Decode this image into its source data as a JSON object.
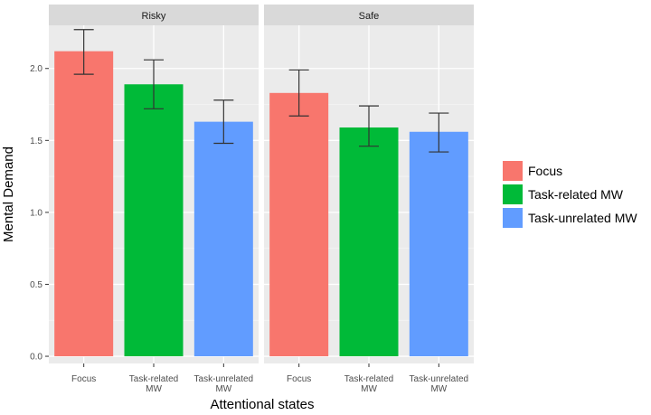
{
  "chart_data": {
    "type": "bar",
    "xlabel": "Attentional states",
    "ylabel": "Mental Demand",
    "ylim": [
      -0.05,
      2.3
    ],
    "yticks": [
      0.0,
      0.5,
      1.0,
      1.5,
      2.0
    ],
    "ytick_labels": [
      "0.0",
      "0.5",
      "1.0",
      "1.5",
      "2.0"
    ],
    "categories": [
      [
        "Focus"
      ],
      [
        "Task-related",
        "MW"
      ],
      [
        "Task-unrelated",
        "MW"
      ]
    ],
    "panels": [
      {
        "title": "Risky",
        "values": [
          2.12,
          1.89,
          1.63
        ],
        "err_low": [
          1.96,
          1.72,
          1.48
        ],
        "err_high": [
          2.27,
          2.06,
          1.78
        ]
      },
      {
        "title": "Safe",
        "values": [
          1.83,
          1.59,
          1.56
        ],
        "err_low": [
          1.67,
          1.46,
          1.42
        ],
        "err_high": [
          1.99,
          1.74,
          1.69
        ]
      }
    ],
    "legend": {
      "position": "right",
      "entries": [
        {
          "label": "Focus",
          "color": "#F8766D"
        },
        {
          "label": "Task-related MW",
          "color": "#00BA38"
        },
        {
          "label": "Task-unrelated MW",
          "color": "#619CFF"
        }
      ]
    },
    "grid": true,
    "colors": {
      "panel_bg": "#EBEBEB",
      "strip_bg": "#D9D9D9",
      "grid_major": "#FFFFFF",
      "grid_minor": "#F5F5F5",
      "errorbar": "#333333"
    }
  }
}
